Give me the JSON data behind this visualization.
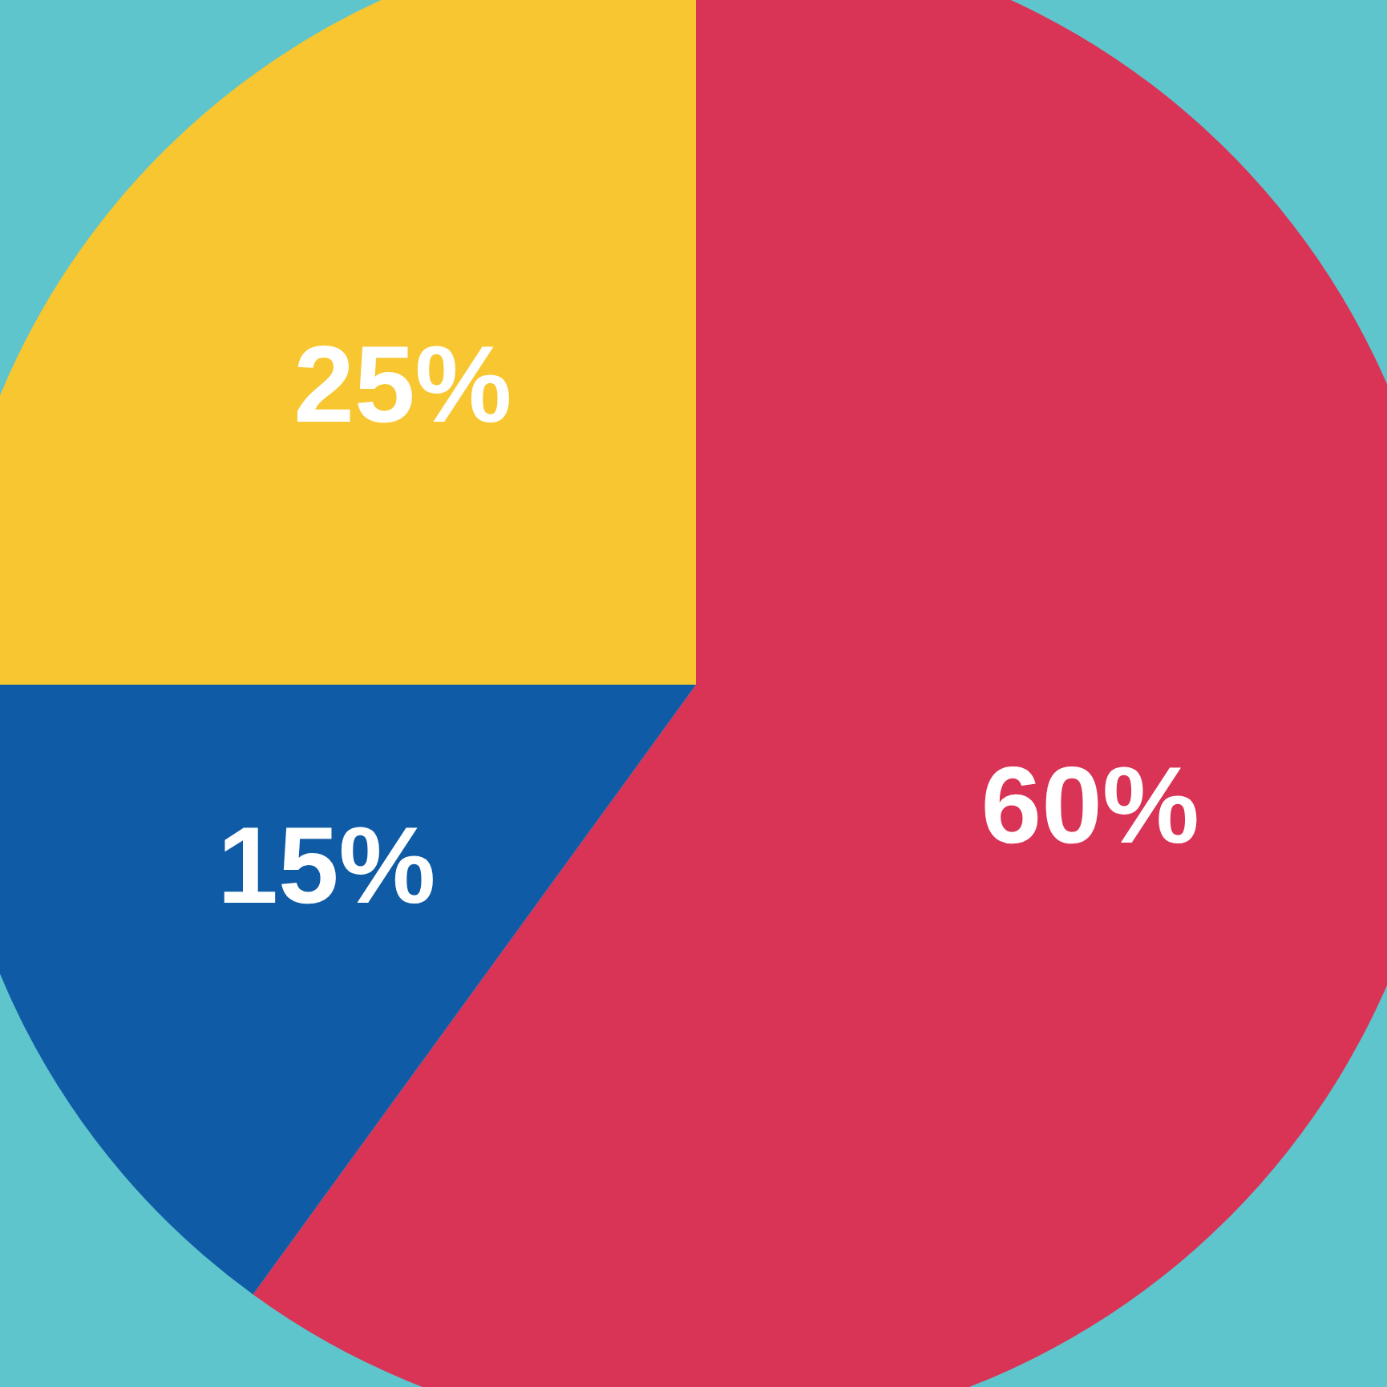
{
  "chart_data": {
    "type": "pie",
    "categories": [
      null,
      null,
      null
    ],
    "values": [
      60,
      15,
      25
    ],
    "colors": [
      "#d93356",
      "#0f5ba6",
      "#f8c630"
    ],
    "value_labels": [
      "60%",
      "15%",
      "25%"
    ],
    "legend": false
  }
}
